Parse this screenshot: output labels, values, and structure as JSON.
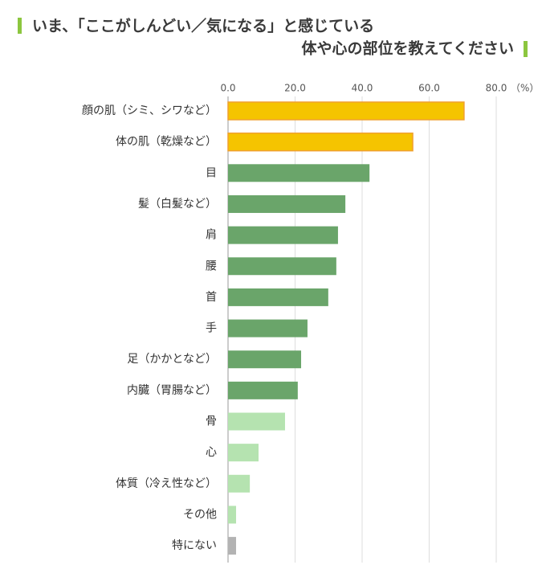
{
  "chart_data": {
    "type": "bar",
    "orientation": "horizontal",
    "title": [
      "いま、「ここがしんどい／気になる」と感じている",
      "体や心の部位を教えてください"
    ],
    "unit": "（%）",
    "categories": [
      "顔の肌（シミ、シワなど）",
      "体の肌（乾燥など）",
      "目",
      "髪（白髪など）",
      "肩",
      "腰",
      "首",
      "手",
      "足（かかとなど）",
      "内臓（胃腸など）",
      "骨",
      "心",
      "体質（冷え性など）",
      "その他",
      "特にない"
    ],
    "values": [
      70.4,
      55.1,
      42.2,
      35.0,
      32.8,
      32.3,
      29.9,
      23.7,
      21.8,
      20.8,
      17.0,
      9.1,
      6.5,
      2.4,
      2.4
    ],
    "colors": [
      "#f5c400",
      "#f5c400",
      "#6aa56a",
      "#6aa56a",
      "#6aa56a",
      "#6aa56a",
      "#6aa56a",
      "#6aa56a",
      "#6aa56a",
      "#6aa56a",
      "#b5e3b0",
      "#b5e3b0",
      "#b5e3b0",
      "#b5e3b0",
      "#b3b3b3"
    ],
    "xlim": [
      0,
      80
    ],
    "xticks": [
      {
        "value": 0,
        "label": "0.0"
      },
      {
        "value": 20,
        "label": "20.0"
      },
      {
        "value": 40,
        "label": "40.0"
      },
      {
        "value": 60,
        "label": "60.0"
      },
      {
        "value": 80,
        "label": "80.0"
      }
    ],
    "grid": true
  }
}
